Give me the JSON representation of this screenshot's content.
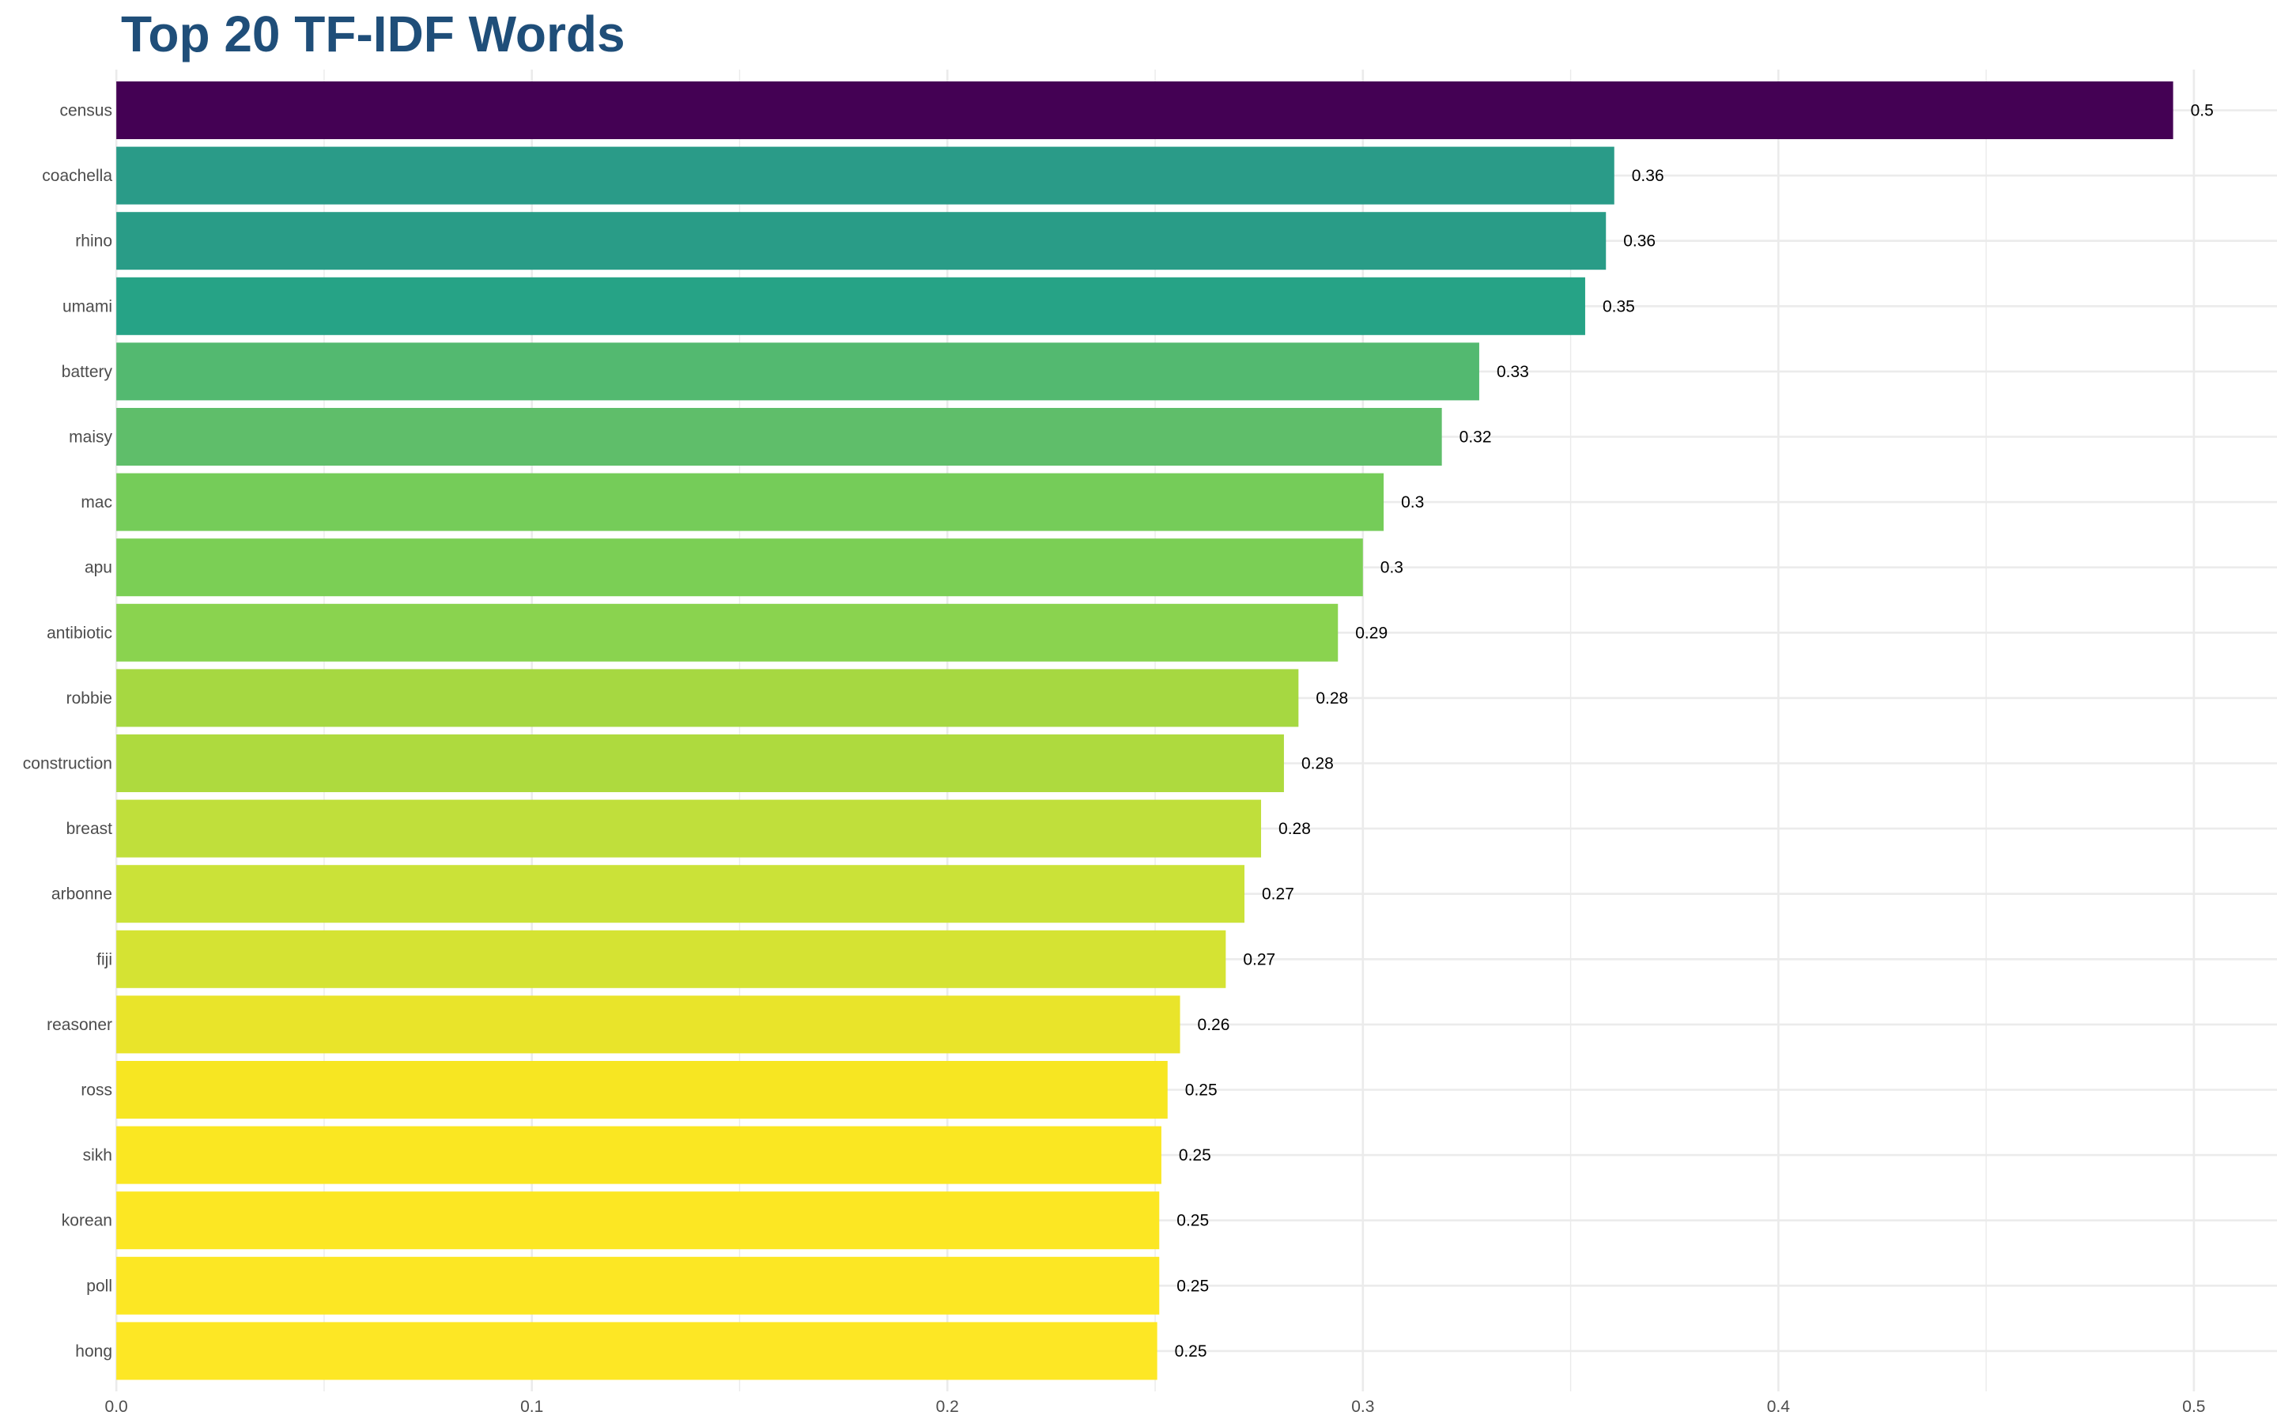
{
  "chart_data": {
    "type": "bar",
    "orientation": "horizontal",
    "title": "Top 20 TF-IDF Words",
    "xlabel": "",
    "ylabel": "",
    "xlim": [
      -0.028,
      0.52
    ],
    "xticks": [
      0.0,
      0.1,
      0.2,
      0.3,
      0.4,
      0.5
    ],
    "xtick_labels": [
      "0.0",
      "0.1",
      "0.2",
      "0.3",
      "0.4",
      "0.5"
    ],
    "grid": true,
    "legend": "none",
    "categories": [
      "census",
      "coachella",
      "rhino",
      "umami",
      "battery",
      "maisy",
      "mac",
      "apu",
      "antibiotic",
      "robbie",
      "construction",
      "breast",
      "arbonne",
      "fiji",
      "reasoner",
      "ross",
      "sikh",
      "korean",
      "poll",
      "hong"
    ],
    "values": [
      0.495,
      0.3605,
      0.3585,
      0.3535,
      0.328,
      0.319,
      0.305,
      0.3,
      0.294,
      0.2845,
      0.281,
      0.2755,
      0.2715,
      0.267,
      0.256,
      0.253,
      0.2515,
      0.251,
      0.251,
      0.2505
    ],
    "value_labels": [
      "0.5",
      "0.36",
      "0.36",
      "0.35",
      "0.33",
      "0.32",
      "0.3",
      "0.3",
      "0.29",
      "0.28",
      "0.28",
      "0.28",
      "0.27",
      "0.27",
      "0.26",
      "0.25",
      "0.25",
      "0.25",
      "0.25",
      "0.25"
    ],
    "bar_colors": [
      "#440154",
      "#2A9B88",
      "#299C87",
      "#26A386",
      "#53B970",
      "#5FBE6A",
      "#75CC59",
      "#7BCF55",
      "#8AD34F",
      "#A6D841",
      "#AEDA3E",
      "#C0DF3B",
      "#CBE238",
      "#D5E333",
      "#E9E42A",
      "#F7E622",
      "#FAE722",
      "#FCE723",
      "#FCE724",
      "#FDE725"
    ],
    "colors": {
      "title": "#1F4E79",
      "grid": "#EBEBEB",
      "axis_text": "#4D4D4D",
      "value_text": "#000000"
    }
  }
}
